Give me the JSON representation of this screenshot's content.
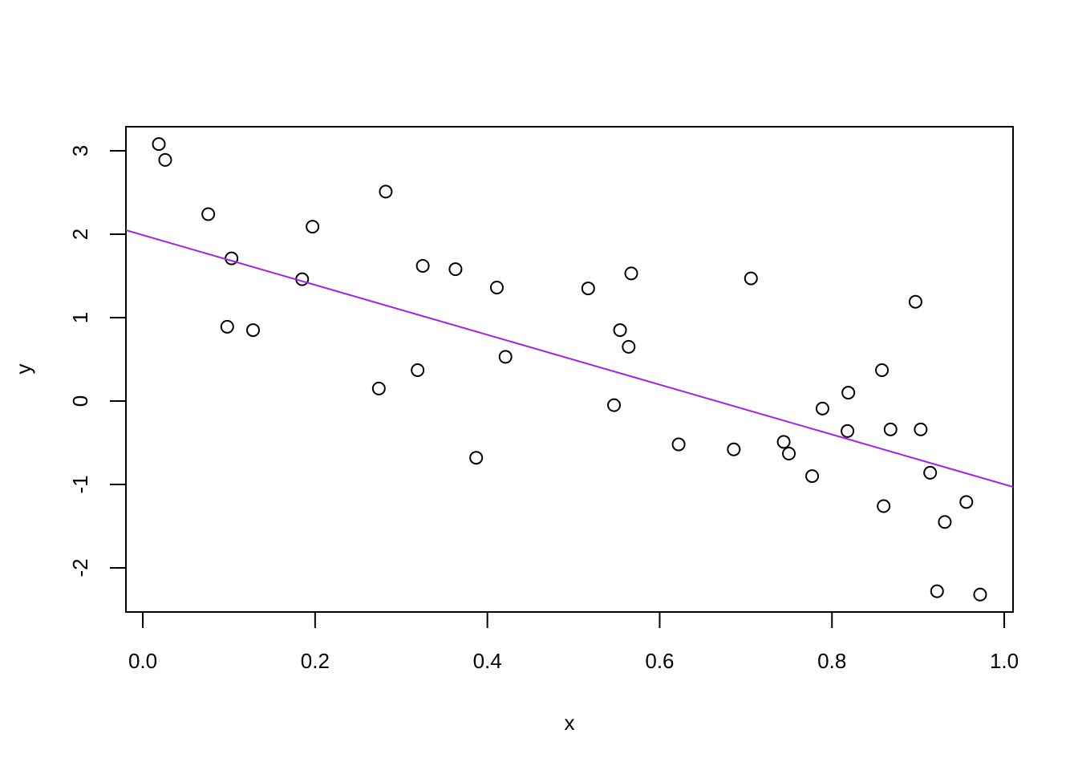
{
  "chart_data": {
    "type": "scatter",
    "x_label": "x",
    "y_label": "y",
    "x": [
      0.0186,
      0.026,
      0.076,
      0.103,
      0.098,
      0.128,
      0.185,
      0.197,
      0.274,
      0.282,
      0.319,
      0.325,
      0.363,
      0.387,
      0.411,
      0.421,
      0.517,
      0.547,
      0.554,
      0.564,
      0.567,
      0.622,
      0.686,
      0.706,
      0.744,
      0.75,
      0.777,
      0.789,
      0.818,
      0.819,
      0.858,
      0.86,
      0.868,
      0.897,
      0.903,
      0.914,
      0.922,
      0.931,
      0.956,
      0.972
    ],
    "values": [
      3.08,
      2.89,
      2.24,
      1.71,
      0.89,
      0.85,
      1.46,
      2.09,
      0.15,
      2.51,
      0.37,
      1.62,
      1.58,
      -0.68,
      1.36,
      0.53,
      1.35,
      -0.05,
      0.85,
      0.65,
      1.53,
      -0.52,
      -0.58,
      1.47,
      -0.49,
      -0.63,
      -0.9,
      -0.09,
      -0.36,
      0.1,
      0.37,
      -1.26,
      -0.34,
      1.19,
      -0.34,
      -0.86,
      -2.28,
      -1.45,
      -1.21,
      -2.32
    ],
    "color": "#000000",
    "abline": {
      "intercept": 1.989,
      "slope": -2.988,
      "color": "#a020f0"
    },
    "xlim": [
      -0.0196,
      1.0102
    ],
    "ylim": [
      -2.529,
      3.288
    ],
    "xticks": [
      {
        "value": 0,
        "label": "0.0"
      },
      0.2,
      0.4,
      0.6,
      0.8,
      {
        "value": 1,
        "label": "1.0"
      }
    ],
    "yticks": [
      -2,
      -1,
      0,
      1,
      2,
      3
    ]
  }
}
